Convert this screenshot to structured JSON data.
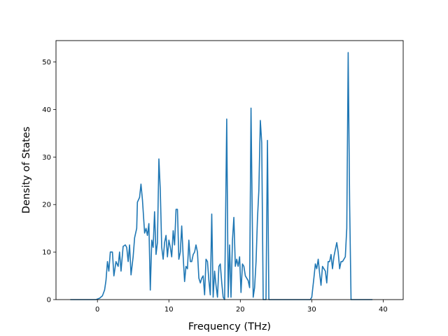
{
  "chart_data": {
    "type": "line",
    "title": "",
    "xlabel": "Frequency (THz)",
    "ylabel": "Density of States",
    "xlim": [
      -5.8,
      42.8
    ],
    "ylim": [
      0,
      54.5
    ],
    "xticks": [
      0,
      10,
      20,
      30,
      40
    ],
    "yticks": [
      0,
      10,
      20,
      30,
      40,
      50
    ],
    "grid": false,
    "legend": "none",
    "series": [
      {
        "color": "#1f77b4",
        "points": [
          [
            -3.8,
            0
          ],
          [
            -1.2,
            0
          ],
          [
            -0.2,
            0
          ],
          [
            0.3,
            0.3
          ],
          [
            0.7,
            0.8
          ],
          [
            1.0,
            2.0
          ],
          [
            1.2,
            4.0
          ],
          [
            1.4,
            8.0
          ],
          [
            1.6,
            6.0
          ],
          [
            1.8,
            10.0
          ],
          [
            2.1,
            10.0
          ],
          [
            2.3,
            5.0
          ],
          [
            2.6,
            8.0
          ],
          [
            2.9,
            7.0
          ],
          [
            3.1,
            10.0
          ],
          [
            3.3,
            6.0
          ],
          [
            3.6,
            11.2
          ],
          [
            3.9,
            11.5
          ],
          [
            4.1,
            11.0
          ],
          [
            4.3,
            8.0
          ],
          [
            4.5,
            11.5
          ],
          [
            4.7,
            5.2
          ],
          [
            5.0,
            9.0
          ],
          [
            5.2,
            13.0
          ],
          [
            5.5,
            15.0
          ],
          [
            5.6,
            20.5
          ],
          [
            5.9,
            21.5
          ],
          [
            6.1,
            24.3
          ],
          [
            6.3,
            21.0
          ],
          [
            6.6,
            14.0
          ],
          [
            6.8,
            15.0
          ],
          [
            7.0,
            13.5
          ],
          [
            7.2,
            16.0
          ],
          [
            7.4,
            2.0
          ],
          [
            7.6,
            12.5
          ],
          [
            7.8,
            11.0
          ],
          [
            8.0,
            18.5
          ],
          [
            8.2,
            9.5
          ],
          [
            8.4,
            12.0
          ],
          [
            8.6,
            29.6
          ],
          [
            8.8,
            23.0
          ],
          [
            9.0,
            11.0
          ],
          [
            9.2,
            8.5
          ],
          [
            9.4,
            12.0
          ],
          [
            9.6,
            13.5
          ],
          [
            9.8,
            9.0
          ],
          [
            10.0,
            12.5
          ],
          [
            10.2,
            11.0
          ],
          [
            10.4,
            9.0
          ],
          [
            10.6,
            14.5
          ],
          [
            10.8,
            11.5
          ],
          [
            11.0,
            19.0
          ],
          [
            11.2,
            19.0
          ],
          [
            11.4,
            8.5
          ],
          [
            11.6,
            10.0
          ],
          [
            11.8,
            15.5
          ],
          [
            12.0,
            9.0
          ],
          [
            12.2,
            3.8
          ],
          [
            12.4,
            7.0
          ],
          [
            12.6,
            6.5
          ],
          [
            12.8,
            12.5
          ],
          [
            13.0,
            8.0
          ],
          [
            13.2,
            8.0
          ],
          [
            13.4,
            9.5
          ],
          [
            13.6,
            10.0
          ],
          [
            13.8,
            11.5
          ],
          [
            14.0,
            10.0
          ],
          [
            14.2,
            4.5
          ],
          [
            14.4,
            3.5
          ],
          [
            14.6,
            4.5
          ],
          [
            14.8,
            5.0
          ],
          [
            15.0,
            1.0
          ],
          [
            15.2,
            8.5
          ],
          [
            15.4,
            8.0
          ],
          [
            15.6,
            4.0
          ],
          [
            15.8,
            1.0
          ],
          [
            16.0,
            18.0
          ],
          [
            16.2,
            0.5
          ],
          [
            16.4,
            6.0
          ],
          [
            16.6,
            3.0
          ],
          [
            16.8,
            0.5
          ],
          [
            17.0,
            7.0
          ],
          [
            17.2,
            7.5
          ],
          [
            17.4,
            3.5
          ],
          [
            17.6,
            0.5
          ],
          [
            17.8,
            0
          ],
          [
            18.1,
            38.0
          ],
          [
            18.3,
            0.5
          ],
          [
            18.5,
            11.5
          ],
          [
            18.7,
            0.5
          ],
          [
            18.9,
            12.5
          ],
          [
            19.1,
            17.3
          ],
          [
            19.3,
            7.0
          ],
          [
            19.5,
            8.5
          ],
          [
            19.7,
            7.0
          ],
          [
            19.9,
            9.0
          ],
          [
            20.1,
            1.5
          ],
          [
            20.3,
            7.5
          ],
          [
            20.5,
            7.0
          ],
          [
            20.7,
            5.0
          ],
          [
            20.9,
            4.5
          ],
          [
            21.1,
            4.0
          ],
          [
            21.3,
            2.5
          ],
          [
            21.5,
            40.3
          ],
          [
            21.8,
            0.5
          ],
          [
            22.0,
            2.5
          ],
          [
            22.2,
            8.0
          ],
          [
            22.4,
            17.0
          ],
          [
            22.6,
            23.0
          ],
          [
            22.8,
            37.7
          ],
          [
            23.0,
            33.0
          ],
          [
            23.2,
            0
          ],
          [
            23.6,
            0
          ],
          [
            23.8,
            33.5
          ],
          [
            24.0,
            0
          ],
          [
            29.8,
            0
          ],
          [
            30.0,
            0.5
          ],
          [
            30.3,
            4.5
          ],
          [
            30.5,
            7.5
          ],
          [
            30.7,
            6.5
          ],
          [
            30.9,
            8.5
          ],
          [
            31.1,
            5.5
          ],
          [
            31.3,
            3.0
          ],
          [
            31.5,
            7.0
          ],
          [
            31.7,
            6.5
          ],
          [
            31.9,
            6.0
          ],
          [
            32.1,
            3.5
          ],
          [
            32.3,
            8.0
          ],
          [
            32.5,
            8.0
          ],
          [
            32.7,
            9.5
          ],
          [
            32.9,
            6.5
          ],
          [
            33.1,
            9.0
          ],
          [
            33.3,
            10.5
          ],
          [
            33.5,
            12.0
          ],
          [
            33.7,
            10.0
          ],
          [
            33.9,
            6.5
          ],
          [
            34.1,
            8.0
          ],
          [
            34.3,
            8.0
          ],
          [
            34.5,
            8.5
          ],
          [
            34.7,
            9.0
          ],
          [
            34.9,
            15.0
          ],
          [
            35.1,
            52.0
          ],
          [
            35.3,
            20.0
          ],
          [
            35.5,
            0
          ],
          [
            38.5,
            0
          ]
        ]
      }
    ]
  }
}
